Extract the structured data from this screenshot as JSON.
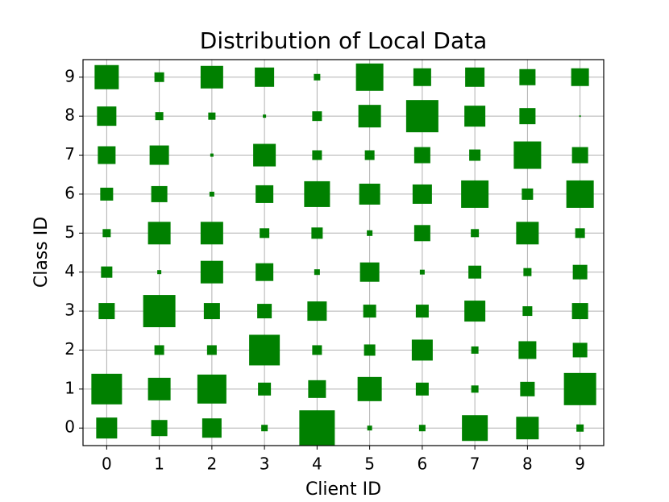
{
  "chart_data": {
    "type": "scatter",
    "title": "Distribution of Local Data",
    "x_label": "Client ID",
    "y_label": "Class ID",
    "marker": "square",
    "color": "#008000",
    "grid": true,
    "xlim": [
      -0.45,
      9.45
    ],
    "ylim": [
      -0.45,
      9.45
    ],
    "xticks": [
      0,
      1,
      2,
      3,
      4,
      5,
      6,
      7,
      8,
      9
    ],
    "yticks": [
      0,
      1,
      2,
      3,
      4,
      5,
      6,
      7,
      8,
      9
    ],
    "x": [
      0,
      0,
      0,
      0,
      0,
      0,
      0,
      0,
      0,
      1,
      1,
      1,
      1,
      1,
      1,
      1,
      1,
      1,
      1,
      2,
      2,
      2,
      2,
      2,
      2,
      2,
      2,
      2,
      2,
      3,
      3,
      3,
      3,
      3,
      3,
      3,
      3,
      3,
      3,
      4,
      4,
      4,
      4,
      4,
      4,
      4,
      4,
      4,
      4,
      5,
      5,
      5,
      5,
      5,
      5,
      5,
      5,
      5,
      5,
      6,
      6,
      6,
      6,
      6,
      6,
      6,
      6,
      6,
      6,
      7,
      7,
      7,
      7,
      7,
      7,
      7,
      7,
      7,
      7,
      8,
      8,
      8,
      8,
      8,
      8,
      8,
      8,
      8,
      8,
      9,
      9,
      9,
      9,
      9,
      9,
      9,
      9,
      9,
      9
    ],
    "y": [
      9,
      8,
      7,
      6,
      5,
      4,
      3,
      1,
      0,
      9,
      8,
      7,
      6,
      5,
      4,
      3,
      2,
      1,
      0,
      9,
      8,
      7,
      6,
      5,
      4,
      3,
      2,
      1,
      0,
      9,
      8,
      7,
      6,
      5,
      4,
      3,
      2,
      1,
      0,
      9,
      8,
      7,
      6,
      5,
      4,
      3,
      2,
      1,
      0,
      9,
      8,
      7,
      6,
      5,
      4,
      3,
      2,
      1,
      0,
      9,
      8,
      7,
      6,
      5,
      4,
      3,
      2,
      1,
      0,
      9,
      8,
      7,
      6,
      5,
      4,
      3,
      2,
      1,
      0,
      9,
      8,
      7,
      6,
      5,
      4,
      3,
      2,
      1,
      0,
      9,
      8,
      7,
      6,
      5,
      4,
      3,
      2,
      1,
      0
    ],
    "sizes": [
      900,
      576,
      484,
      256,
      100,
      196,
      400,
      1444,
      676,
      144,
      100,
      576,
      400,
      784,
      25,
      1600,
      144,
      784,
      400,
      784,
      81,
      16,
      36,
      784,
      784,
      400,
      144,
      1296,
      576,
      576,
      16,
      784,
      484,
      144,
      484,
      324,
      1444,
      256,
      64,
      64,
      144,
      144,
      1024,
      196,
      49,
      576,
      144,
      484,
      1936,
      1156,
      784,
      144,
      676,
      49,
      576,
      256,
      196,
      900,
      36,
      484,
      1600,
      400,
      576,
      400,
      36,
      256,
      676,
      256,
      64,
      576,
      676,
      196,
      1156,
      100,
      256,
      676,
      81,
      81,
      1024,
      400,
      400,
      1156,
      196,
      784,
      100,
      144,
      484,
      324,
      784,
      484,
      4,
      400,
      1156,
      144,
      324,
      400,
      324,
      1600,
      81
    ]
  }
}
